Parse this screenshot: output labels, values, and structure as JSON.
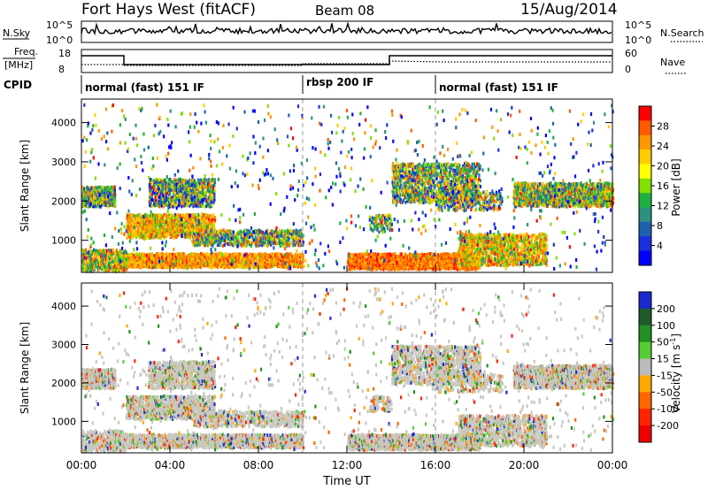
{
  "header": {
    "title": "Fort Hays West (fitACF)",
    "beam": "Beam 08",
    "date": "15/Aug/2014"
  },
  "panels": {
    "nsky_label": "N.Sky",
    "nsearch_label": "N.Search",
    "freq_label_1": "Freq.",
    "freq_label_2": "[MHz]",
    "nave_label": "Nave",
    "cpid_label": "CPID",
    "nsky_ticks": [
      "10^5",
      "10^0"
    ],
    "nsearch_ticks": [
      "10^5",
      "10^0"
    ],
    "freq_ticks": [
      "18",
      "8"
    ],
    "nave_ticks": [
      "60",
      "0"
    ]
  },
  "cpid_segments": [
    {
      "label": "normal (fast) 151 IF",
      "start_h": 0
    },
    {
      "label": "rbsp 200 IF",
      "start_h": 10
    },
    {
      "label": "normal (fast) 151 IF",
      "start_h": 16
    }
  ],
  "chart_data": [
    {
      "type": "heatmap",
      "name": "power",
      "ylabel": "Slant Range [km]",
      "yticks": [
        1000,
        2000,
        3000,
        4000
      ],
      "ylim": [
        180,
        4600
      ],
      "xlim_h": [
        0,
        24
      ],
      "colorbar": {
        "label": "Power [dB]",
        "ticks": [
          "28",
          "24",
          "20",
          "16",
          "12",
          "8",
          "4"
        ],
        "colors": [
          "#ff0000",
          "#ff5a00",
          "#ff9600",
          "#ffcc00",
          "#ffff00",
          "#80e000",
          "#20b040",
          "#2e9080",
          "#2060b0",
          "#1a30e0",
          "#0000ff"
        ]
      }
    },
    {
      "type": "heatmap",
      "name": "velocity",
      "ylabel": "Slant Range [km]",
      "yticks": [
        1000,
        2000,
        3000,
        4000
      ],
      "ylim": [
        180,
        4600
      ],
      "xlim_h": [
        0,
        24
      ],
      "colorbar": {
        "label": "Velocity [m s",
        "label_sup": "-1",
        "label_end": "]",
        "ticks": [
          "200",
          "100",
          "50",
          "15",
          "-15",
          "-50",
          "-100",
          "-200"
        ],
        "colors": [
          "#1a2ad0",
          "#1f5a2a",
          "#229022",
          "#55cc33",
          "#bbbbbb",
          "#ffaa00",
          "#ff6600",
          "#ff2200",
          "#ee0000"
        ]
      }
    }
  ],
  "time_axis": {
    "label": "Time UT",
    "ticks": [
      "00:00",
      "04:00",
      "08:00",
      "12:00",
      "16:00",
      "20:00",
      "00:00"
    ]
  },
  "colors": {
    "gray_scatter": "#c8c8c0",
    "axis": "#000000"
  }
}
